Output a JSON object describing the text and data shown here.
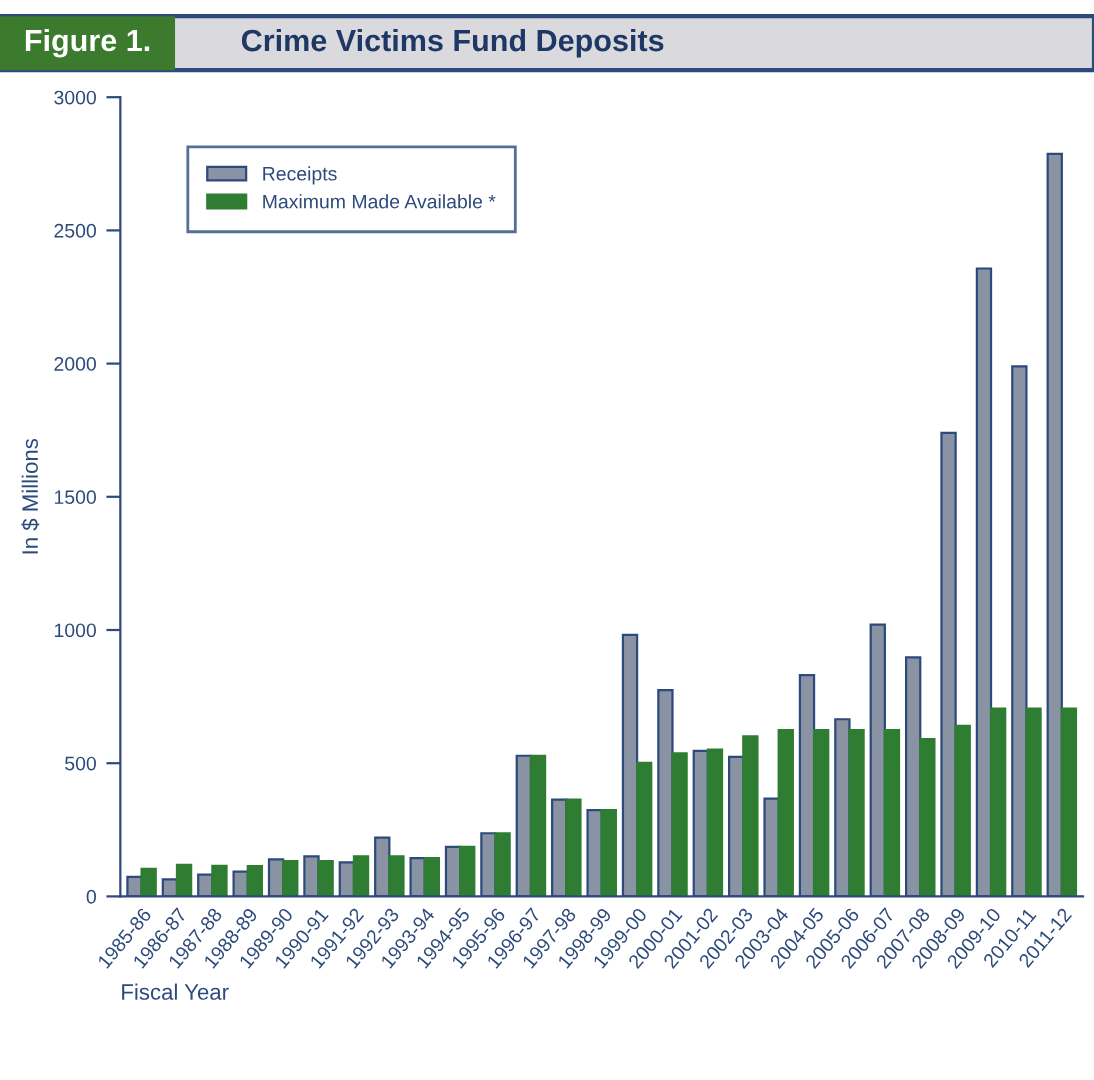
{
  "chart_data": {
    "type": "bar",
    "title": "Figure 1.",
    "subtitle": "Crime Victims Fund Deposits",
    "xlabel": "Fiscal Year",
    "ylabel": "In $ Millions",
    "categories": [
      "1985-86",
      "1986-87",
      "1987-88",
      "1988-89",
      "1989-90",
      "1990-91",
      "1991-92",
      "1992-93",
      "1993-94",
      "1994-95",
      "1995-96",
      "1996-97",
      "1997-98",
      "1998-99",
      "1999-00",
      "2000-01",
      "2001-02",
      "2002-03",
      "2003-04",
      "2004-05",
      "2005-06",
      "2006-07",
      "2007-08",
      "2008-09",
      "2009-10",
      "2010-11",
      "2011-12"
    ],
    "series": [
      {
        "name": "Receipts",
        "color": "#8a93a3",
        "values": [
          73,
          64,
          82,
          93,
          139,
          150,
          128,
          221,
          144,
          186,
          237,
          528,
          363,
          324,
          982,
          774,
          546,
          524,
          367,
          831,
          665,
          1020,
          897,
          1740,
          2357,
          1990,
          2787
        ]
      },
      {
        "name": "Maximum Made Available *",
        "color": "#2e7d32",
        "values": [
          103,
          118,
          115,
          114,
          132,
          132,
          150,
          150,
          144,
          186,
          237,
          528,
          363,
          324,
          501,
          537,
          551,
          601,
          624,
          624,
          624,
          624,
          590,
          640,
          705,
          705,
          705
        ]
      }
    ],
    "ylim": [
      0,
      3000
    ],
    "yticks": [
      0,
      500,
      1000,
      1500,
      2000,
      2500,
      3000
    ],
    "grid": false,
    "legend": "top left"
  }
}
